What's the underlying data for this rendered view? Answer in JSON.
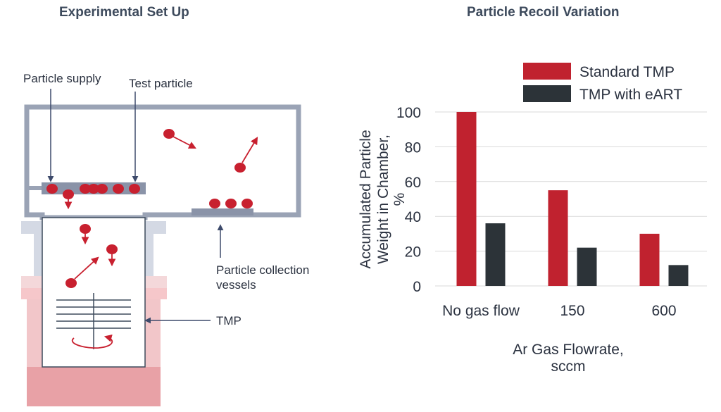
{
  "setup": {
    "title": "Experimental Set Up",
    "labels": {
      "particle_supply": "Particle supply",
      "test_particle": "Test particle",
      "collection_line1": "Particle collection",
      "collection_line2": "vessels",
      "tmp": "TMP"
    },
    "colors": {
      "particle": "#c8202f",
      "chamber": "#9aa3b5",
      "arrow": "#3d4a6b",
      "pump_base": "#e8a0a6"
    }
  },
  "chart_data": {
    "type": "bar",
    "title": "Particle Recoil Variation",
    "categories": [
      "No gas flow",
      "150",
      "600"
    ],
    "series": [
      {
        "name": "Standard TMP",
        "values": [
          100,
          55,
          30
        ],
        "color": "#c0222f"
      },
      {
        "name": "TMP with eART",
        "values": [
          36,
          22,
          12
        ],
        "color": "#2c3338"
      }
    ],
    "ylabel_line1": "Accumulated Particle",
    "ylabel_line2": "Weight in Chamber,",
    "ylabel_line3": "%",
    "xlabel_line1": "Ar Gas Flowrate,",
    "xlabel_line2": "sccm",
    "yticks": [
      0,
      20,
      40,
      60,
      80,
      100
    ],
    "ylim": [
      0,
      100
    ],
    "grid": true,
    "legend_position": "top-right"
  }
}
